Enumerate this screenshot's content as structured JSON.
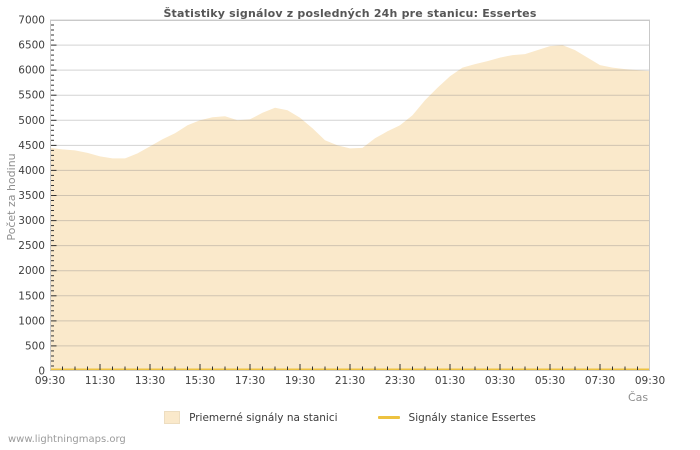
{
  "page": {
    "watermark": "www.lightningmaps.org"
  },
  "chart_data": {
    "type": "area",
    "title": "Štatistiky signálov z posledných 24h pre stanicu: Essertes",
    "xlabel": "Čas",
    "ylabel": "Počet za hodinu",
    "ylim": [
      0,
      7000
    ],
    "y_tick_step": 500,
    "y_minor_tick_step": 100,
    "x_start": "09:30",
    "x_step_minutes": 30,
    "x_tick_labels": [
      "09:30",
      "11:30",
      "13:30",
      "15:30",
      "17:30",
      "19:30",
      "21:30",
      "23:30",
      "01:30",
      "03:30",
      "05:30",
      "07:30",
      "09:30"
    ],
    "grid": true,
    "legend_position": "bottom-center",
    "series": [
      {
        "name": "Priemerné signály na stanici",
        "type": "area",
        "color": "#edc240",
        "fill": "#fae9cb",
        "values": [
          4450,
          4420,
          4400,
          4350,
          4280,
          4240,
          4240,
          4340,
          4480,
          4620,
          4740,
          4900,
          5000,
          5060,
          5080,
          5000,
          5020,
          5150,
          5250,
          5200,
          5050,
          4840,
          4600,
          4500,
          4440,
          4450,
          4640,
          4780,
          4900,
          5100,
          5400,
          5650,
          5880,
          6050,
          6120,
          6180,
          6250,
          6300,
          6320,
          6400,
          6480,
          6500,
          6400,
          6250,
          6100,
          6050,
          6020,
          6000,
          5980
        ]
      },
      {
        "name": "Signály stanice Essertes",
        "type": "line",
        "color": "#edc240",
        "values": [
          0,
          0,
          0,
          0,
          0,
          0,
          0,
          0,
          0,
          0,
          0,
          0,
          0,
          0,
          0,
          0,
          0,
          0,
          0,
          0,
          0,
          0,
          0,
          0,
          0,
          0,
          0,
          0,
          0,
          0,
          0,
          0,
          0,
          0,
          0,
          0,
          0,
          0,
          0,
          0,
          0,
          0,
          0,
          0,
          0,
          0,
          0,
          0,
          0
        ]
      }
    ],
    "colors": {
      "accent": "#edc240",
      "area_fill": "#fae9cb",
      "grid": "#cfcfcf",
      "border": "#c9c9c9",
      "tick": "#333333",
      "text": "#3f3f3f",
      "muted_text": "#8f8f8f",
      "title": "#565656"
    }
  }
}
